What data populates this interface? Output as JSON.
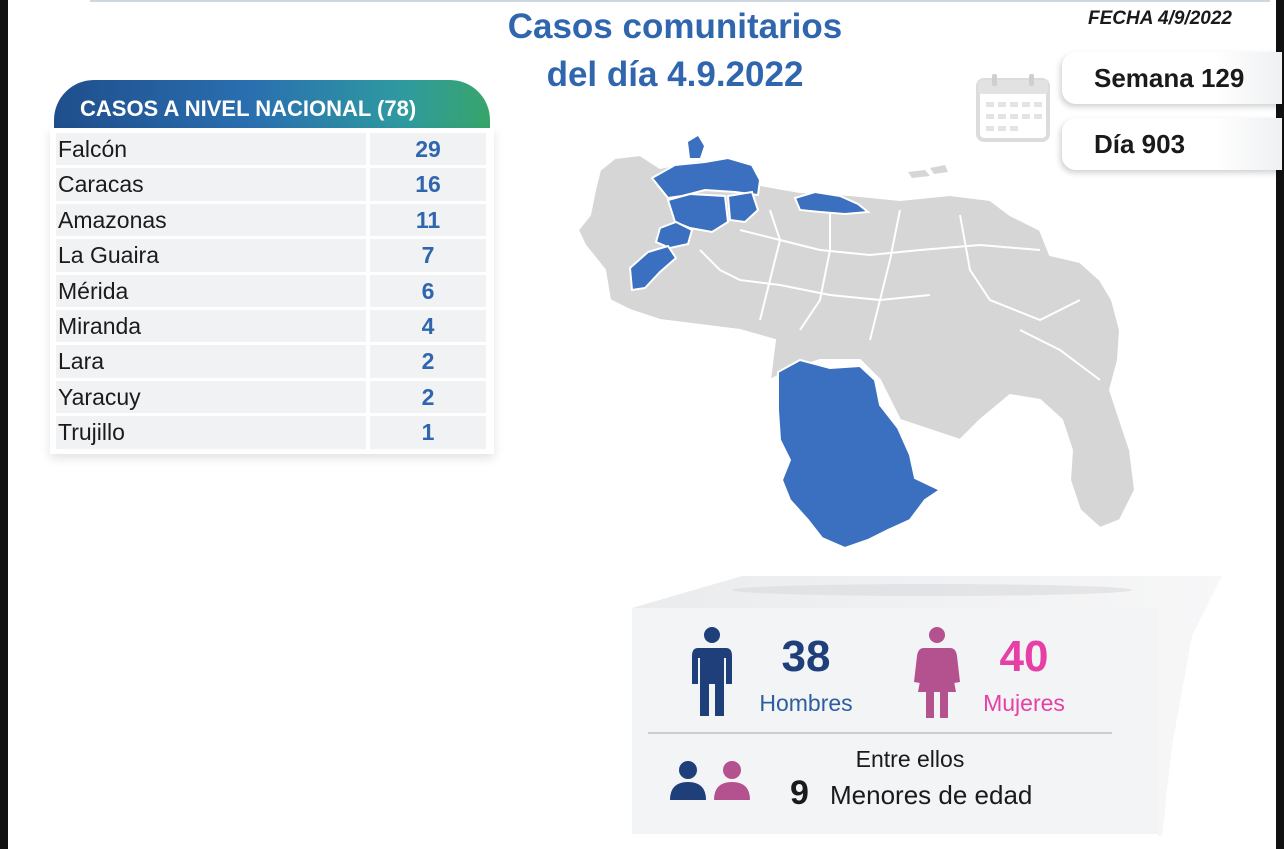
{
  "header": {
    "title_line1": "Casos comunitarios",
    "title_line2": "del día 4.9.2022",
    "fecha": "FECHA 4/9/2022",
    "semana": "Semana 129",
    "dia": "Día 903"
  },
  "table": {
    "heading": "CASOS A NIVEL NACIONAL  (78)",
    "rows": [
      {
        "name": "Falcón",
        "value": "29"
      },
      {
        "name": "Caracas",
        "value": "16"
      },
      {
        "name": "Amazonas",
        "value": "11"
      },
      {
        "name": "La Guaira",
        "value": "7"
      },
      {
        "name": "Mérida",
        "value": "6"
      },
      {
        "name": "Miranda",
        "value": "4"
      },
      {
        "name": "Lara",
        "value": "2"
      },
      {
        "name": "Yaracuy",
        "value": "2"
      },
      {
        "name": "Trujillo",
        "value": "1"
      }
    ]
  },
  "stats": {
    "men_count": "38",
    "men_label": "Hombres",
    "women_count": "40",
    "women_label": "Mujeres",
    "entre_ellos": "Entre ellos",
    "menores_count": "9",
    "menores_label": "Menores de edad"
  },
  "colors": {
    "title_blue": "#2f66ad",
    "highlight_state": "#3b6fbf",
    "base_state": "#d6d6d6",
    "men": "#1f3f7a",
    "women": "#e63fa5",
    "women_icon": "#b4528f"
  },
  "icons": {
    "calendar": "calendar-icon",
    "man": "man-icon",
    "woman": "woman-icon",
    "children": "children-pair-icon"
  }
}
